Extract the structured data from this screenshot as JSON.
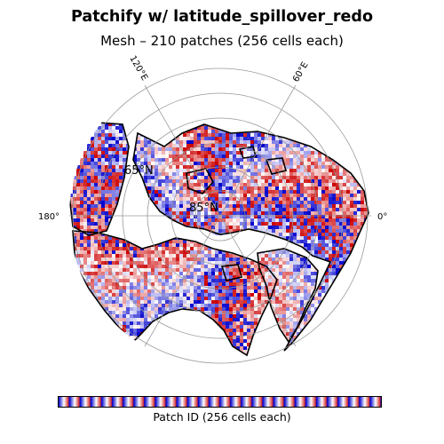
{
  "title": "Patchify w/ latitude_spillover_redo",
  "subtitle": "Mesh – 210 patches (256 cells each)",
  "map": {
    "projection": "north-polar-stereographic",
    "longitude_labels": [
      {
        "lon": 120,
        "text": "120°E"
      },
      {
        "lon": 60,
        "text": "60°E"
      },
      {
        "lon": 180,
        "text": "180°"
      },
      {
        "lon": 0,
        "text": "0°"
      }
    ],
    "latitude_labels": [
      {
        "lat": 65,
        "text": "65°N"
      },
      {
        "lat": 85,
        "text": "85°N"
      }
    ],
    "patch_count": 210,
    "cells_per_patch": 256,
    "colormap": "seismic",
    "colors": {
      "low": "#0000cc",
      "mid": "#ffffff",
      "high": "#cc0000",
      "coast": "#000000",
      "grid": "#999999"
    }
  },
  "colorbar": {
    "label": "Patch ID (256 cells each)"
  }
}
